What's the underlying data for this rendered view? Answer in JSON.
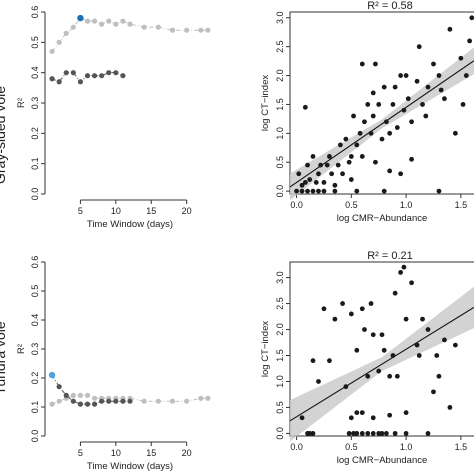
{
  "chart_data": [
    {
      "panel": "top-left",
      "type": "scatter",
      "row_label": "Gray-sided vole",
      "xlabel": "Time Window (days)",
      "ylabel": "R²",
      "xlim": [
        0,
        24
      ],
      "ylim": [
        0,
        0.6
      ],
      "xticks": [
        5,
        10,
        15,
        20
      ],
      "yticks": [
        0,
        0.1,
        0.2,
        0.3,
        0.4,
        0.5,
        0.6
      ],
      "series": [
        {
          "color": "#bfbfbf",
          "connected": true,
          "x": [
            1,
            2,
            3,
            4,
            5,
            6,
            7,
            8,
            9,
            10,
            11,
            12,
            14,
            16,
            18,
            20,
            22,
            23
          ],
          "y": [
            0.47,
            0.5,
            0.53,
            0.55,
            0.58,
            0.57,
            0.57,
            0.56,
            0.57,
            0.56,
            0.57,
            0.56,
            0.55,
            0.55,
            0.54,
            0.54,
            0.54,
            0.54
          ]
        },
        {
          "color": "#555555",
          "connected": true,
          "x": [
            1,
            2,
            3,
            4,
            5,
            6,
            7,
            8,
            9,
            10,
            11
          ],
          "y": [
            0.38,
            0.37,
            0.4,
            0.4,
            0.37,
            0.39,
            0.39,
            0.39,
            0.4,
            0.4,
            0.39
          ]
        }
      ],
      "highlight": {
        "x": 5,
        "y": 0.58,
        "color": "#1f6fb4"
      }
    },
    {
      "panel": "top-right",
      "type": "scatter",
      "title": "R² = 0.58",
      "xlabel": "log CMR−Abundance",
      "ylabel": "log CT−index",
      "xlim": [
        -0.06,
        1.62
      ],
      "ylim": [
        -0.05,
        3.1
      ],
      "xticks": [
        0,
        0.5,
        1,
        1.5
      ],
      "yticks": [
        0,
        0.5,
        1,
        1.5,
        2,
        2.5,
        3
      ],
      "fit": {
        "intercept": 0.15,
        "slope": 1.3
      },
      "points": [
        [
          0,
          0
        ],
        [
          0.05,
          0
        ],
        [
          0.1,
          0
        ],
        [
          0.15,
          0
        ],
        [
          0.2,
          0
        ],
        [
          0.25,
          0
        ],
        [
          0.35,
          0
        ],
        [
          0.55,
          0
        ],
        [
          0.8,
          0
        ],
        [
          1.3,
          0
        ],
        [
          0.02,
          0.3
        ],
        [
          0.05,
          0.1
        ],
        [
          0.08,
          0.15
        ],
        [
          0.1,
          0.45
        ],
        [
          0.12,
          0.2
        ],
        [
          0.18,
          0.15
        ],
        [
          0.2,
          0.3
        ],
        [
          0.22,
          0.45
        ],
        [
          0.25,
          0.15
        ],
        [
          0.3,
          0.6
        ],
        [
          0.32,
          0.3
        ],
        [
          0.35,
          0.1
        ],
        [
          0.38,
          0.45
        ],
        [
          0.4,
          0.8
        ],
        [
          0.42,
          0.3
        ],
        [
          0.45,
          0.9
        ],
        [
          0.48,
          0.5
        ],
        [
          0.5,
          0.6
        ],
        [
          0.52,
          1.3
        ],
        [
          0.55,
          0.8
        ],
        [
          0.58,
          1.0
        ],
        [
          0.6,
          0.6
        ],
        [
          0.62,
          1.2
        ],
        [
          0.65,
          1.5
        ],
        [
          0.68,
          1.0
        ],
        [
          0.7,
          1.3
        ],
        [
          0.72,
          0.5
        ],
        [
          0.75,
          1.5
        ],
        [
          0.78,
          0.9
        ],
        [
          0.8,
          1.8
        ],
        [
          0.82,
          1.2
        ],
        [
          0.85,
          1.0
        ],
        [
          0.88,
          1.5
        ],
        [
          0.9,
          1.8
        ],
        [
          0.92,
          1.1
        ],
        [
          0.95,
          2.0
        ],
        [
          0.98,
          1.4
        ],
        [
          1.0,
          2.0
        ],
        [
          1.02,
          1.6
        ],
        [
          1.05,
          1.2
        ],
        [
          1.1,
          1.9
        ],
        [
          1.12,
          2.5
        ],
        [
          1.15,
          1.5
        ],
        [
          1.2,
          1.8
        ],
        [
          1.25,
          2.2
        ],
        [
          1.3,
          2.0
        ],
        [
          1.35,
          1.6
        ],
        [
          1.4,
          2.8
        ],
        [
          1.45,
          1.0
        ],
        [
          1.5,
          2.3
        ],
        [
          1.52,
          1.5
        ],
        [
          1.55,
          2.0
        ],
        [
          1.58,
          2.6
        ],
        [
          1.6,
          3.0
        ],
        [
          0.28,
          0.45
        ],
        [
          0.5,
          0.2
        ],
        [
          0.7,
          1.7
        ],
        [
          0.72,
          2.2
        ],
        [
          0.95,
          0.3
        ],
        [
          1.18,
          1.3
        ],
        [
          0.08,
          1.45
        ],
        [
          0.15,
          0.6
        ],
        [
          0.6,
          2.2
        ],
        [
          0.85,
          0.35
        ],
        [
          1.05,
          0.55
        ],
        [
          1.32,
          1.75
        ]
      ]
    },
    {
      "panel": "bottom-left",
      "type": "scatter",
      "row_label": "Tundra vole",
      "xlabel": "Time Window (days)",
      "ylabel": "R²",
      "xlim": [
        0,
        24
      ],
      "ylim": [
        0,
        0.6
      ],
      "xticks": [
        5,
        10,
        15,
        20
      ],
      "yticks": [
        0,
        0.1,
        0.2,
        0.3,
        0.4,
        0.5,
        0.6
      ],
      "series": [
        {
          "color": "#bfbfbf",
          "connected": true,
          "x": [
            1,
            2,
            3,
            4,
            5,
            6,
            7,
            8,
            9,
            10,
            11,
            12,
            14,
            16,
            18,
            20,
            22,
            23
          ],
          "y": [
            0.11,
            0.12,
            0.13,
            0.14,
            0.14,
            0.14,
            0.13,
            0.13,
            0.13,
            0.13,
            0.13,
            0.13,
            0.12,
            0.12,
            0.12,
            0.12,
            0.13,
            0.13
          ]
        },
        {
          "color": "#555555",
          "connected": true,
          "x": [
            1,
            2,
            3,
            4,
            5,
            6,
            7,
            8,
            9,
            10,
            11,
            12
          ],
          "y": [
            0.21,
            0.17,
            0.14,
            0.12,
            0.11,
            0.11,
            0.11,
            0.12,
            0.12,
            0.12,
            0.12,
            0.12
          ]
        }
      ],
      "highlight": {
        "x": 1,
        "y": 0.21,
        "color": "#4fa3dc"
      }
    },
    {
      "panel": "bottom-right",
      "type": "scatter",
      "title": "R² = 0.21",
      "xlabel": "log CMR−Abundance",
      "ylabel": "log CT−index",
      "xlim": [
        -0.06,
        1.62
      ],
      "ylim": [
        -0.05,
        3.3
      ],
      "xticks": [
        0,
        0.5,
        1,
        1.5
      ],
      "yticks": [
        0,
        0.5,
        1,
        1.5,
        2,
        2.5,
        3
      ],
      "fit": {
        "intercept": 0.32,
        "slope": 1.3
      },
      "points": [
        [
          0.1,
          0
        ],
        [
          0.12,
          0
        ],
        [
          0.15,
          0
        ],
        [
          0.48,
          0
        ],
        [
          0.52,
          0
        ],
        [
          0.55,
          0
        ],
        [
          0.6,
          0
        ],
        [
          0.65,
          0
        ],
        [
          0.7,
          0
        ],
        [
          0.75,
          0
        ],
        [
          0.78,
          0
        ],
        [
          0.82,
          0
        ],
        [
          0.9,
          0
        ],
        [
          1.0,
          0
        ],
        [
          1.2,
          0
        ],
        [
          0.5,
          0.3
        ],
        [
          0.55,
          0.4
        ],
        [
          0.6,
          0.4
        ],
        [
          0.7,
          0.3
        ],
        [
          0.85,
          0.35
        ],
        [
          1.0,
          0.4
        ],
        [
          0.05,
          0.3
        ],
        [
          0.45,
          0.9
        ],
        [
          0.55,
          1.6
        ],
        [
          0.6,
          2.4
        ],
        [
          0.62,
          2.0
        ],
        [
          0.65,
          1.1
        ],
        [
          0.7,
          1.9
        ],
        [
          0.75,
          1.2
        ],
        [
          0.8,
          1.6
        ],
        [
          0.85,
          1.1
        ],
        [
          0.9,
          2.7
        ],
        [
          0.92,
          1.1
        ],
        [
          0.95,
          3.1
        ],
        [
          0.98,
          3.2
        ],
        [
          1.0,
          2.2
        ],
        [
          1.05,
          2.9
        ],
        [
          1.1,
          1.7
        ],
        [
          1.15,
          2.2
        ],
        [
          1.2,
          2.0
        ],
        [
          1.25,
          0.8
        ],
        [
          1.28,
          1.5
        ],
        [
          1.3,
          1.1
        ],
        [
          1.35,
          1.8
        ],
        [
          1.4,
          0.5
        ],
        [
          1.45,
          1.7
        ],
        [
          0.15,
          1.4
        ],
        [
          0.2,
          1.0
        ],
        [
          0.3,
          1.4
        ],
        [
          0.25,
          2.4
        ],
        [
          0.35,
          2.2
        ],
        [
          0.42,
          2.5
        ],
        [
          0.5,
          2.3
        ],
        [
          0.68,
          2.5
        ],
        [
          0.78,
          1.9
        ],
        [
          1.12,
          1.5
        ],
        [
          0.88,
          1.5
        ]
      ]
    }
  ]
}
